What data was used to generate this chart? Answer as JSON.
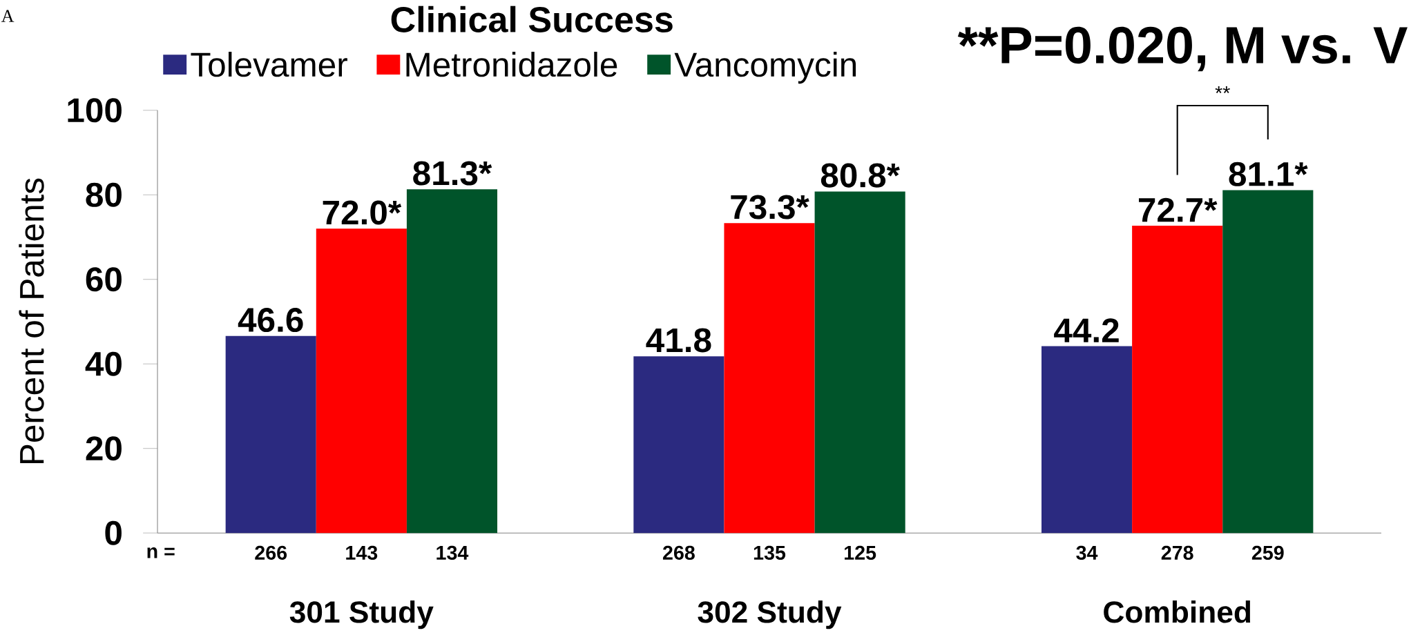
{
  "chart_data": {
    "type": "bar",
    "title": "Clinical Success",
    "ylabel": "Percent of Patients",
    "categories": [
      "301 Study",
      "302 Study",
      "Combined"
    ],
    "series": [
      {
        "name": "Tolevamer",
        "color": "#2b2a80",
        "values": [
          46.6,
          41.8,
          44.2
        ],
        "value_labels": [
          "46.6",
          "41.8",
          "44.2"
        ]
      },
      {
        "name": "Metronidazole",
        "color": "#ff0000",
        "values": [
          72.0,
          73.3,
          72.7
        ],
        "value_labels": [
          "72.0*",
          "73.3*",
          "72.7*"
        ]
      },
      {
        "name": "Vancomycin",
        "color": "#00542a",
        "values": [
          81.3,
          80.8,
          81.1
        ],
        "value_labels": [
          "81.3*",
          "80.8*",
          "81.1*"
        ]
      }
    ],
    "ylim": [
      0,
      100
    ],
    "yticks": [
      0,
      20,
      40,
      60,
      80,
      100
    ],
    "legend": "top",
    "annotations": [
      "A",
      "**P=0.020, M vs. V",
      "**",
      "n =",
      "266",
      "143",
      "134",
      "268",
      "135",
      "125",
      "34",
      "278",
      "259"
    ]
  }
}
